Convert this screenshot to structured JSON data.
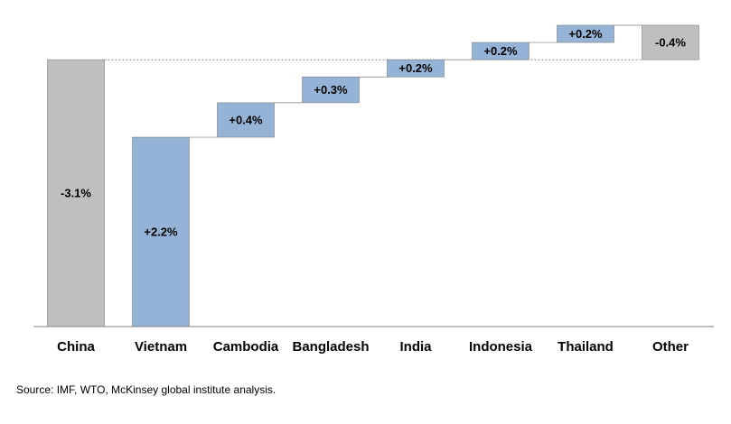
{
  "chart_data": {
    "type": "waterfall",
    "categories": [
      "China",
      "Vietnam",
      "Cambodia",
      "Bangladesh",
      "India",
      "Indonesia",
      "Thailand",
      "Other"
    ],
    "values": [
      -3.1,
      2.2,
      0.4,
      0.3,
      0.2,
      0.2,
      0.2,
      -0.4
    ],
    "value_labels": [
      "-3.1%",
      "+2.2%",
      "+0.4%",
      "+0.3%",
      "+0.2%",
      "+0.2%",
      "+0.2%",
      "-0.4%"
    ],
    "increase_color": "#95b3d7",
    "decrease_color": "#bfbfbf",
    "source": "Source: IMF, WTO, McKinsey global institute analysis."
  }
}
